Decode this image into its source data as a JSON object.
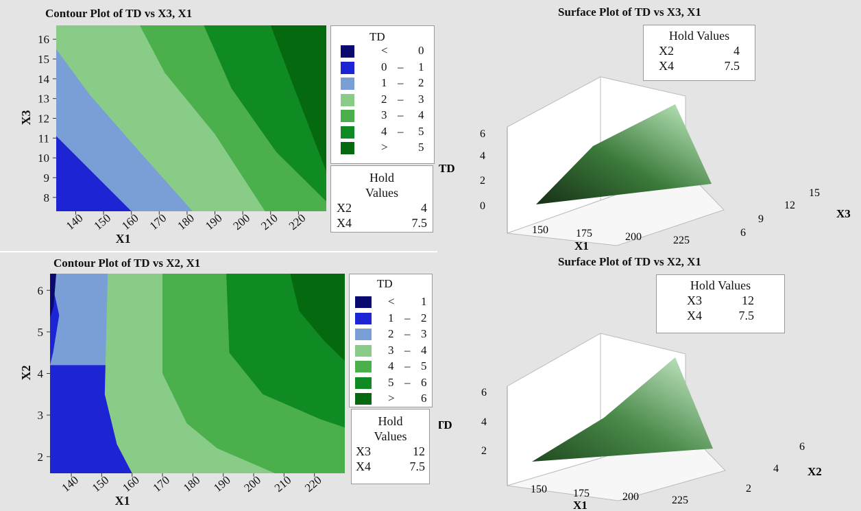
{
  "chart_data": [
    {
      "type": "contour",
      "title": "Contour Plot of TD vs X3, X1",
      "xlabel": "X1",
      "ylabel": "X3",
      "xlim": [
        133,
        230
      ],
      "ylim": [
        7.3,
        16.7
      ],
      "xticks": [
        140,
        150,
        160,
        170,
        180,
        190,
        200,
        210,
        220
      ],
      "yticks": [
        8,
        9,
        10,
        11,
        12,
        13,
        14,
        15,
        16
      ],
      "legend": {
        "title": "TD",
        "entries": [
          {
            "label": "< 0",
            "a": "<",
            "b": "",
            "c": "0",
            "color": "#0a0a6e"
          },
          {
            "label": "0 – 1",
            "a": "0",
            "b": "–",
            "c": "1",
            "color": "#1c24d4"
          },
          {
            "label": "1 – 2",
            "a": "1",
            "b": "–",
            "c": "2",
            "color": "#7a9fd6"
          },
          {
            "label": "2 – 3",
            "a": "2",
            "b": "–",
            "c": "3",
            "color": "#88cc88"
          },
          {
            "label": "3 – 4",
            "a": "3",
            "b": "–",
            "c": "4",
            "color": "#4bb04b"
          },
          {
            "label": "4 – 5",
            "a": "4",
            "b": "–",
            "c": "5",
            "color": "#108a22"
          },
          {
            "label": "> 5",
            "a": ">",
            "b": "",
            "c": "5",
            "color": "#056a0f"
          }
        ]
      },
      "contour_boundaries": [
        {
          "level": 1,
          "points": [
            [
              133,
              11.1
            ],
            [
              160,
              7.3
            ]
          ]
        },
        {
          "level": 2,
          "points": [
            [
              133,
              15.5
            ],
            [
              145,
              13.2
            ],
            [
              163,
              10.3
            ],
            [
              182,
              7.3
            ]
          ]
        },
        {
          "level": 3,
          "points": [
            [
              163,
              16.7
            ],
            [
              172,
              14.3
            ],
            [
              190,
              11.2
            ],
            [
              208,
              7.3
            ]
          ]
        },
        {
          "level": 4,
          "points": [
            [
              186,
              16.7
            ],
            [
              196,
              13.5
            ],
            [
              212,
              10.3
            ],
            [
              230,
              7.8
            ]
          ]
        },
        {
          "level": 5,
          "points": [
            [
              210,
              16.7
            ],
            [
              218,
              13.7
            ],
            [
              230,
              9.3
            ]
          ]
        }
      ],
      "hold_values": {
        "head": "Hold",
        "head2": "Values",
        "rows": [
          [
            "X2",
            "4"
          ],
          [
            "X4",
            "7.5"
          ]
        ]
      }
    },
    {
      "type": "surface",
      "title": "Surface Plot of TD vs X3, X1",
      "zlabel": "TD",
      "xlabel": "X1",
      "ylabel": "X3",
      "zticks": [
        "0",
        "2",
        "4",
        "6"
      ],
      "xticks": [
        "150",
        "175",
        "200",
        "225"
      ],
      "yticks": [
        "6",
        "9",
        "12",
        "15"
      ],
      "hold_values": {
        "head": "Hold Values",
        "rows": [
          [
            "X2",
            "4"
          ],
          [
            "X4",
            "7.5"
          ]
        ]
      }
    },
    {
      "type": "contour",
      "title": "Contour Plot of TD vs X2, X1",
      "xlabel": "X1",
      "ylabel": "X2",
      "xlim": [
        133,
        230
      ],
      "ylim": [
        1.6,
        6.4
      ],
      "xticks": [
        140,
        150,
        160,
        170,
        180,
        190,
        200,
        210,
        220
      ],
      "yticks": [
        2,
        3,
        4,
        5,
        6
      ],
      "legend": {
        "title": "TD",
        "entries": [
          {
            "label": "< 1",
            "a": "<",
            "b": "",
            "c": "1",
            "color": "#0a0a6e"
          },
          {
            "label": "1 – 2",
            "a": "1",
            "b": "–",
            "c": "2",
            "color": "#1c24d4"
          },
          {
            "label": "2 – 3",
            "a": "2",
            "b": "–",
            "c": "3",
            "color": "#7a9fd6"
          },
          {
            "label": "3 – 4",
            "a": "3",
            "b": "–",
            "c": "4",
            "color": "#88cc88"
          },
          {
            "label": "4 – 5",
            "a": "4",
            "b": "–",
            "c": "5",
            "color": "#4bb04b"
          },
          {
            "label": "5 – 6",
            "a": "5",
            "b": "–",
            "c": "6",
            "color": "#108a22"
          },
          {
            "label": "> 6",
            "a": ">",
            "b": "",
            "c": "6",
            "color": "#056a0f"
          }
        ]
      },
      "contour_boundaries": [
        {
          "level": 1,
          "points": [
            [
              133,
              6.4
            ],
            [
              136,
              5.4
            ],
            [
              134,
              4.5
            ],
            [
              133,
              4.2
            ]
          ]
        },
        {
          "level": 2,
          "points": [
            [
              152,
              6.4
            ],
            [
              151,
              3.5
            ],
            [
              155,
              2.3
            ],
            [
              160,
              1.6
            ]
          ]
        },
        {
          "level": 3,
          "points": [
            [
              170,
              6.4
            ],
            [
              170,
              4.0
            ],
            [
              178,
              2.8
            ],
            [
              188,
              2.2
            ],
            [
              207,
              1.6
            ]
          ]
        },
        {
          "level": 4,
          "points": [
            [
              191,
              6.4
            ],
            [
              192,
              4.5
            ],
            [
              203,
              3.5
            ],
            [
              222,
              2.9
            ],
            [
              230,
              2.7
            ]
          ]
        },
        {
          "level": 5,
          "points": [
            [
              212,
              6.4
            ],
            [
              215,
              5.5
            ],
            [
              223,
              4.8
            ],
            [
              230,
              4.3
            ]
          ]
        }
      ],
      "hold_values": {
        "head": "Hold",
        "head2": "Values",
        "rows": [
          [
            "X3",
            "12"
          ],
          [
            "X4",
            "7.5"
          ]
        ]
      }
    },
    {
      "type": "surface",
      "title": "Surface Plot of TD vs X2, X1",
      "zlabel": "TD",
      "xlabel": "X1",
      "ylabel": "X2",
      "zticks": [
        "2",
        "4",
        "6"
      ],
      "xticks": [
        "150",
        "175",
        "200",
        "225"
      ],
      "yticks": [
        "2",
        "4",
        "6"
      ],
      "hold_values": {
        "head": "Hold Values",
        "rows": [
          [
            "X3",
            "12"
          ],
          [
            "X4",
            "7.5"
          ]
        ]
      }
    }
  ]
}
